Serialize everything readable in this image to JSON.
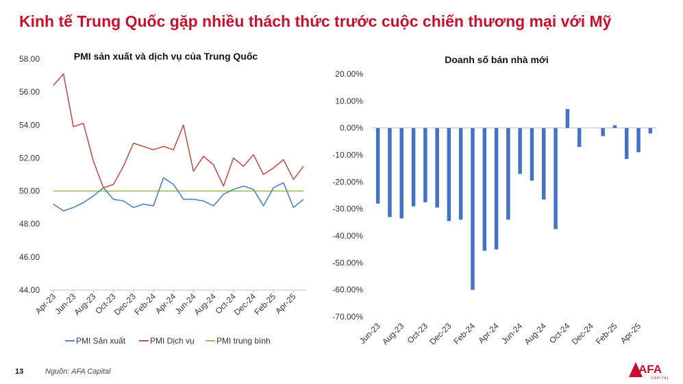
{
  "header": {
    "title": "Kinh tế Trung Quốc gặp nhiều thách thức trước cuộc chiến thương mại với Mỹ"
  },
  "footer": {
    "page_number": "13",
    "source": "Nguồn: AFA Capital"
  },
  "logo": {
    "text": "AFA",
    "subtext": "CAPITAL",
    "color": "#c8102e"
  },
  "chart_data": [
    {
      "type": "line",
      "title": "PMI sản xuất và dịch vụ của Trung Quốc",
      "x": [
        "Apr-23",
        "May-23",
        "Jun-23",
        "Jul-23",
        "Aug-23",
        "Sep-23",
        "Oct-23",
        "Nov-23",
        "Dec-23",
        "Jan-24",
        "Feb-24",
        "Mar-24",
        "Apr-24",
        "May-24",
        "Jun-24",
        "Jul-24",
        "Aug-24",
        "Sep-24",
        "Oct-24",
        "Nov-24",
        "Dec-24",
        "Jan-25",
        "Feb-25",
        "Mar-25",
        "Apr-25",
        "May-25"
      ],
      "x_tick_labels": [
        "Apr-23",
        "Jun-23",
        "Aug-23",
        "Oct-23",
        "Dec-23",
        "Feb-24",
        "Apr-24",
        "Jun-24",
        "Aug-24",
        "Oct-24",
        "Dec-24",
        "Feb-25",
        "Apr-25"
      ],
      "ylim": [
        44,
        58
      ],
      "y_ticks": [
        "44.00",
        "46.00",
        "48.00",
        "50.00",
        "52.00",
        "54.00",
        "56.00",
        "58.00"
      ],
      "grid": false,
      "legend_position": "bottom",
      "series": [
        {
          "name": "PMI Sản xuất",
          "color": "#4f81bd",
          "values": [
            49.2,
            48.8,
            49.0,
            49.3,
            49.7,
            50.2,
            49.5,
            49.4,
            49.0,
            49.2,
            49.1,
            50.8,
            50.4,
            49.5,
            49.5,
            49.4,
            49.1,
            49.8,
            50.1,
            50.3,
            50.1,
            49.1,
            50.2,
            50.5,
            49.0,
            49.5
          ]
        },
        {
          "name": "PMI Dịch vụ",
          "color": "#c0504d",
          "values": [
            56.4,
            57.1,
            53.9,
            54.1,
            51.8,
            50.2,
            50.4,
            51.5,
            52.9,
            52.7,
            52.5,
            52.7,
            52.5,
            54.0,
            51.2,
            52.1,
            51.6,
            50.3,
            52.0,
            51.5,
            52.2,
            51.0,
            51.4,
            51.9,
            50.7,
            51.5
          ]
        },
        {
          "name": "PMI trung bình",
          "color": "#9bbb59",
          "values": [
            50,
            50,
            50,
            50,
            50,
            50,
            50,
            50,
            50,
            50,
            50,
            50,
            50,
            50,
            50,
            50,
            50,
            50,
            50,
            50,
            50,
            50,
            50,
            50,
            50,
            50
          ]
        }
      ]
    },
    {
      "type": "bar",
      "title": "Doanh số bán nhà mới",
      "categories": [
        "Jun-23",
        "Jul-23",
        "Aug-23",
        "Sep-23",
        "Oct-23",
        "Nov-23",
        "Dec-23",
        "Jan-24",
        "Feb-24",
        "Mar-24",
        "Apr-24",
        "May-24",
        "Jun-24",
        "Jul-24",
        "Aug-24",
        "Sep-24",
        "Oct-24",
        "Nov-24",
        "Dec-24",
        "Jan-25",
        "Feb-25",
        "Mar-25",
        "Apr-25",
        "May-25"
      ],
      "x_tick_labels": [
        "Jun-23",
        "Aug-23",
        "Oct-23",
        "Dec-23",
        "Feb-24",
        "Apr-24",
        "Jun-24",
        "Aug-24",
        "Oct-24",
        "Dec-24",
        "Feb-25",
        "Apr-25"
      ],
      "values": [
        -28.0,
        -33.0,
        -33.5,
        -29.0,
        -27.5,
        -29.5,
        -34.5,
        -34.0,
        -60.0,
        -45.5,
        -45.0,
        -34.0,
        -17.0,
        -19.5,
        -26.5,
        -37.5,
        7.0,
        -7.0,
        0.0,
        -3.0,
        1.0,
        -11.5,
        -9.0,
        -2.0
      ],
      "unit": "%",
      "ylim": [
        -70,
        20
      ],
      "y_ticks": [
        "20.00%",
        "10.00%",
        "0.00%",
        "-10.00%",
        "-20.00%",
        "-30.00%",
        "-40.00%",
        "-50.00%",
        "-60.00%",
        "-70.00%"
      ],
      "color": "#4472c4",
      "grid": false
    }
  ]
}
